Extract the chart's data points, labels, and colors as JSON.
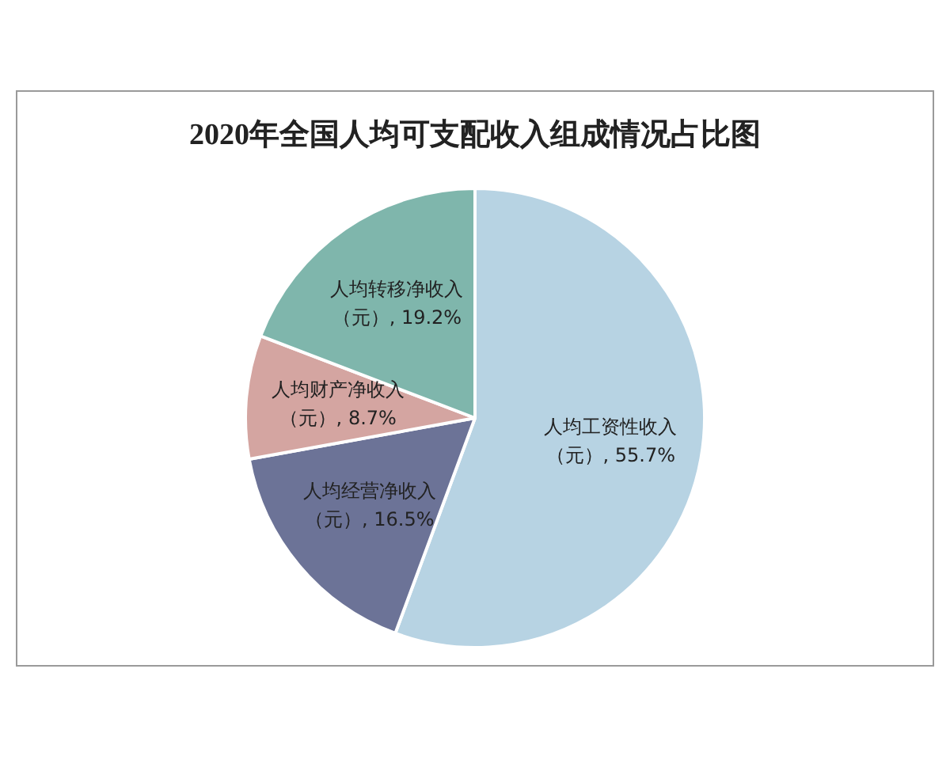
{
  "chart_data": {
    "type": "pie",
    "title": "2020年全国人均可支配收入组成情况占比图",
    "categories": [
      "人均工资性收入",
      "人均经营净收入",
      "人均财产净收入",
      "人均转移净收入"
    ],
    "values": [
      55.7,
      16.5,
      8.7,
      19.2
    ],
    "colors": [
      "#b7d3e3",
      "#6c7397",
      "#d4a5a1",
      "#7fb6ac"
    ],
    "value_labels": [
      "（元）, 55.7%",
      "（元）, 16.5%",
      "（元）, 8.7%",
      "（元）, 19.2%"
    ],
    "legend": false
  }
}
